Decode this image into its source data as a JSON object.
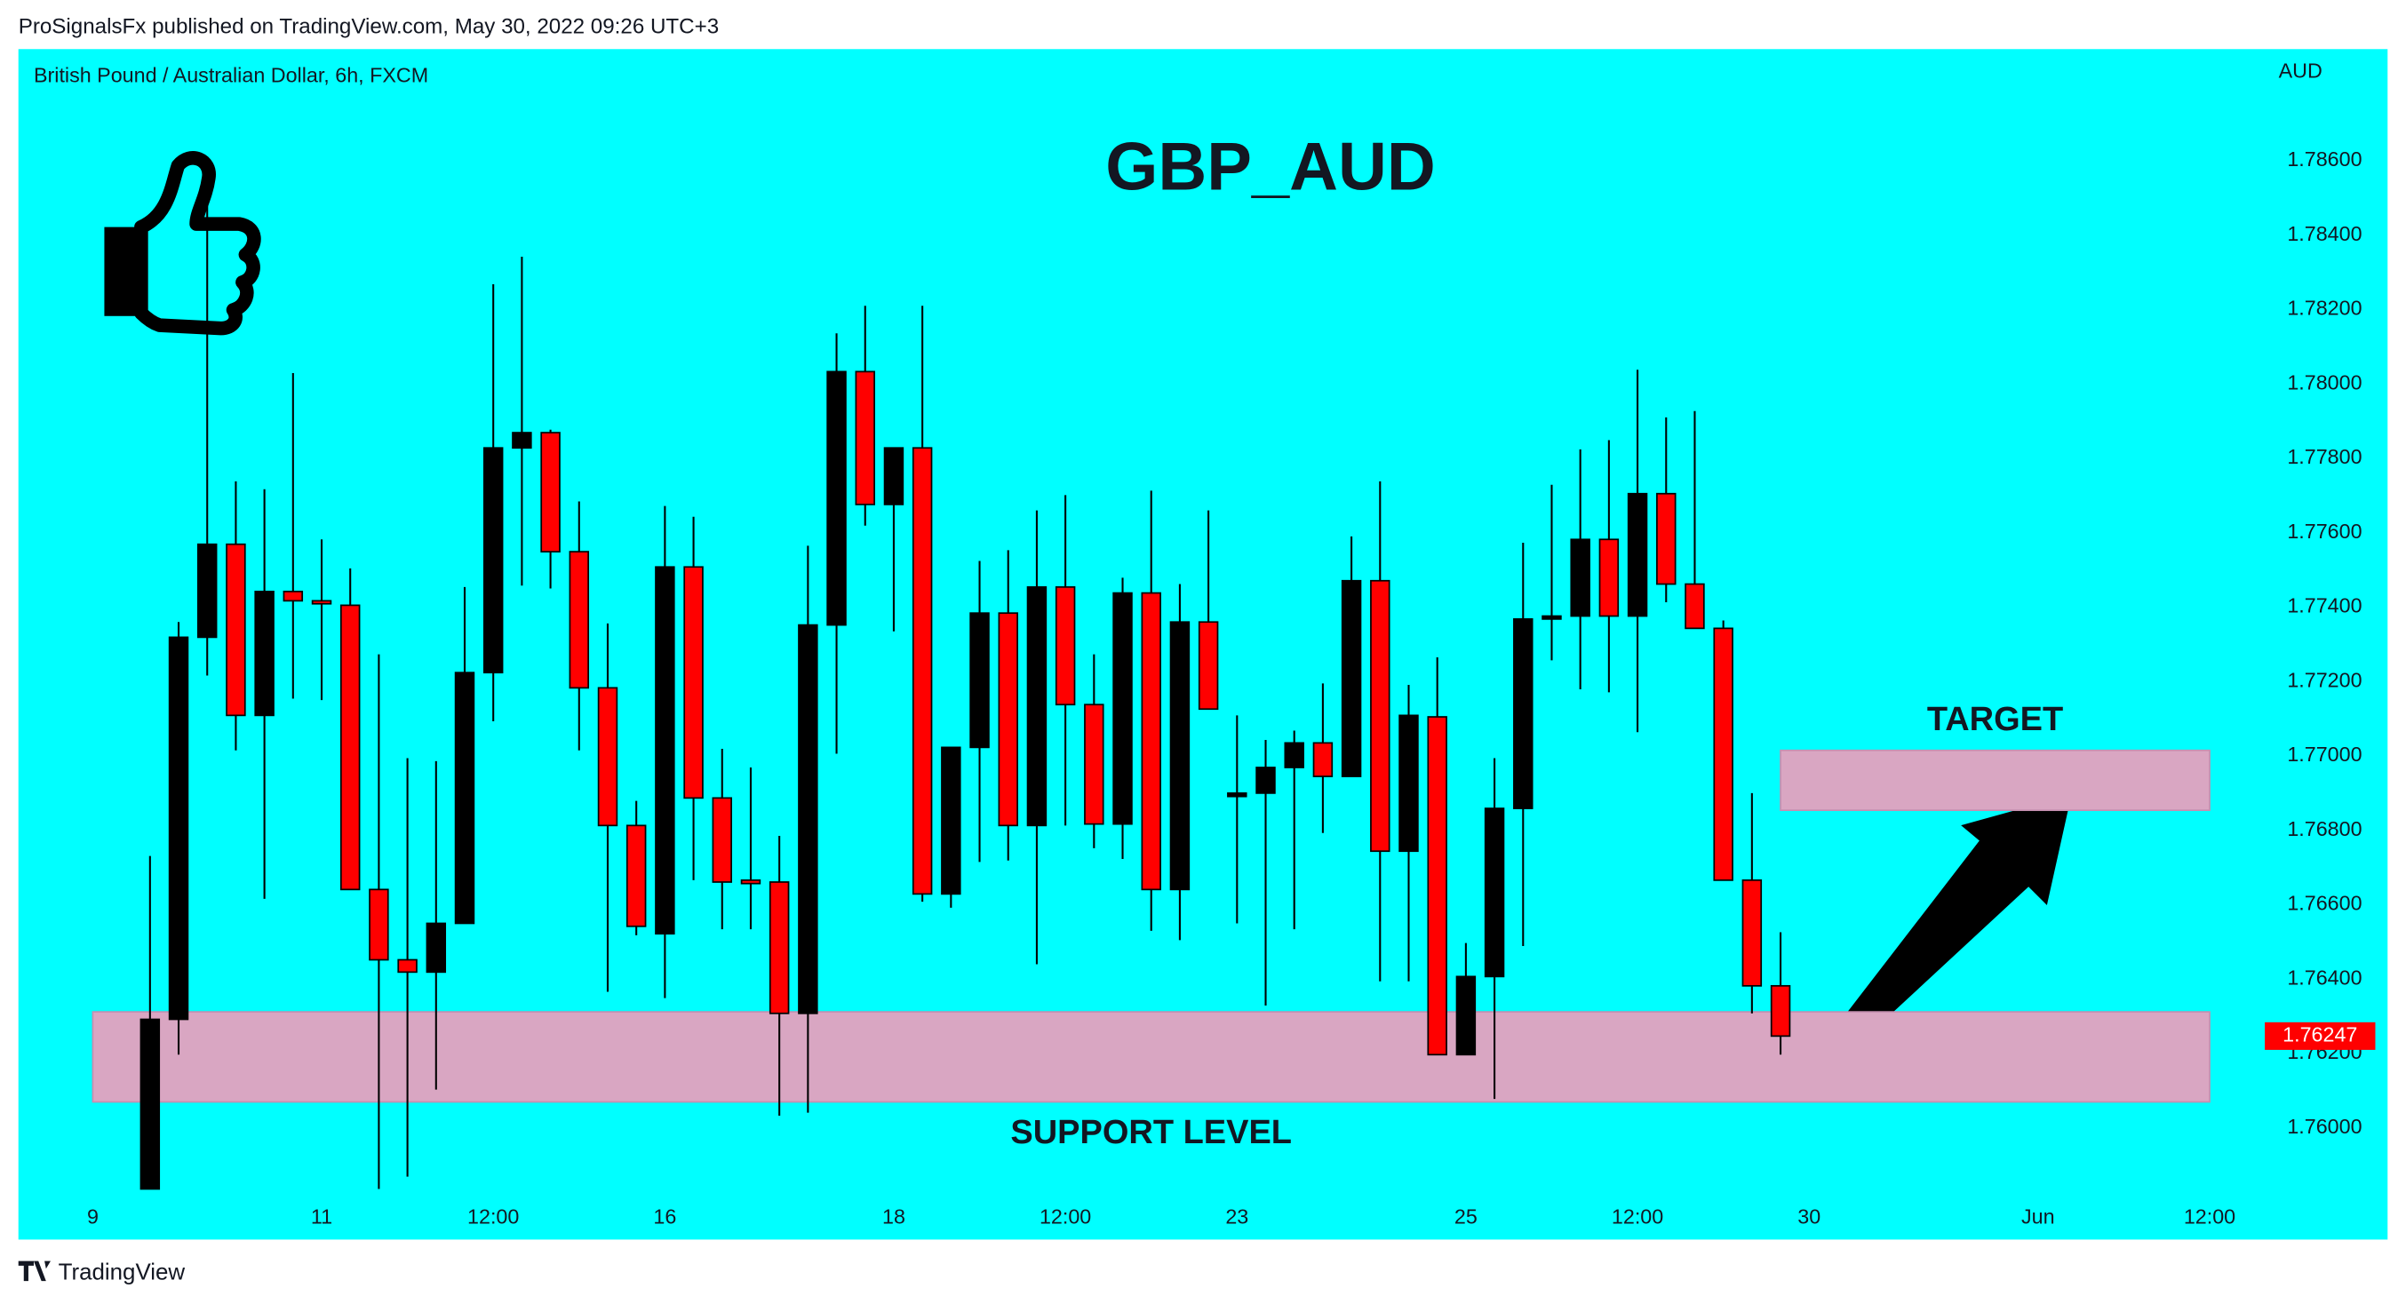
{
  "header": "ProSignalsFx published on TradingView.com, May 30, 2022 09:26 UTC+3",
  "footer": "TradingView",
  "chart_data": {
    "type": "candlestick",
    "symbol": "British Pound / Australian Dollar, 6h, FXCM",
    "title": "GBP_AUD",
    "currency": "AUD",
    "up_color": "#000000",
    "down_color": "#ff0000",
    "background": "#00ffff",
    "x": [
      2,
      3,
      4,
      5,
      6,
      7,
      8,
      9,
      10,
      11,
      12,
      13,
      14,
      15,
      16,
      17,
      18,
      19,
      20,
      21,
      22,
      23,
      24,
      25,
      26,
      27,
      28,
      29,
      30,
      31,
      32,
      33,
      34,
      35,
      36,
      37,
      38,
      39,
      40,
      41,
      42,
      43,
      44,
      45,
      46,
      47,
      48,
      49,
      50,
      51,
      52,
      53,
      54,
      55,
      56,
      57,
      58,
      59
    ],
    "open": [
      1.75836,
      1.76292,
      1.77319,
      1.77569,
      1.77109,
      1.77442,
      1.77417,
      1.77405,
      1.76641,
      1.76452,
      1.76419,
      1.7655,
      1.77224,
      1.77828,
      1.77869,
      1.77549,
      1.77183,
      1.76813,
      1.76522,
      1.77508,
      1.76887,
      1.76666,
      1.76661,
      1.76308,
      1.77352,
      1.78033,
      1.77676,
      1.77828,
      1.76629,
      1.77023,
      1.77384,
      1.76813,
      1.77454,
      1.77138,
      1.76817,
      1.77438,
      1.76641,
      1.7736,
      1.76891,
      1.769,
      1.76969,
      1.77035,
      1.76945,
      1.77471,
      1.76744,
      1.77105,
      1.76197,
      1.76407,
      1.76859,
      1.77368,
      1.77376,
      1.77582,
      1.77376,
      1.77705,
      1.77462,
      1.77343,
      1.76666,
      1.76382
    ],
    "high": [
      1.76731,
      1.7736,
      1.78539,
      1.77738,
      1.77717,
      1.78029,
      1.77582,
      1.77504,
      1.77273,
      1.76994,
      1.76986,
      1.77454,
      1.78268,
      1.78342,
      1.77877,
      1.77684,
      1.77356,
      1.76879,
      1.77672,
      1.77643,
      1.77019,
      1.76969,
      1.76785,
      1.77565,
      1.78136,
      1.7821,
      1.77828,
      1.7821,
      1.77023,
      1.77524,
      1.77553,
      1.7766,
      1.77701,
      1.77273,
      1.77479,
      1.77713,
      1.77462,
      1.7766,
      1.77109,
      1.77043,
      1.77068,
      1.77195,
      1.7759,
      1.77738,
      1.77191,
      1.77265,
      1.76497,
      1.76994,
      1.77573,
      1.77729,
      1.77824,
      1.77849,
      1.78038,
      1.7791,
      1.77927,
      1.77364,
      1.769,
      1.76526
    ],
    "low": [
      1.75836,
      1.76197,
      1.77216,
      1.77015,
      1.76616,
      1.77154,
      1.7715,
      1.76641,
      1.75836,
      1.75869,
      1.76103,
      1.7655,
      1.77093,
      1.77458,
      1.7745,
      1.77015,
      1.76366,
      1.76518,
      1.76349,
      1.76666,
      1.76534,
      1.76534,
      1.76033,
      1.76041,
      1.77006,
      1.77619,
      1.77335,
      1.76608,
      1.76592,
      1.76715,
      1.76719,
      1.7644,
      1.76813,
      1.76752,
      1.76723,
      1.7653,
      1.76505,
      1.77126,
      1.7655,
      1.76329,
      1.76534,
      1.76793,
      1.76945,
      1.76394,
      1.76394,
      1.76197,
      1.76197,
      1.76078,
      1.76489,
      1.77257,
      1.77179,
      1.77171,
      1.77064,
      1.77413,
      1.77343,
      1.76666,
      1.76308,
      1.76197
    ],
    "close": [
      1.76292,
      1.77319,
      1.77569,
      1.77109,
      1.77442,
      1.77417,
      1.77409,
      1.76641,
      1.76452,
      1.76419,
      1.7655,
      1.77224,
      1.77828,
      1.77869,
      1.77549,
      1.77183,
      1.76813,
      1.76542,
      1.77508,
      1.76887,
      1.76661,
      1.76657,
      1.76308,
      1.77352,
      1.78033,
      1.77676,
      1.77828,
      1.76629,
      1.77023,
      1.77384,
      1.76813,
      1.77454,
      1.77138,
      1.76817,
      1.77438,
      1.76641,
      1.7736,
      1.77126,
      1.769,
      1.76969,
      1.77035,
      1.76945,
      1.77471,
      1.76744,
      1.77109,
      1.76197,
      1.76407,
      1.76859,
      1.77368,
      1.77376,
      1.77582,
      1.77376,
      1.77705,
      1.77462,
      1.77343,
      1.76666,
      1.76382,
      1.76247
    ],
    "xlim": [
      -2.6,
      75.5
    ],
    "ylim": [
      1.757,
      1.789
    ],
    "xticks": [
      {
        "value": 0,
        "label": "9"
      },
      {
        "value": 8,
        "label": "11"
      },
      {
        "value": 14,
        "label": "12:00"
      },
      {
        "value": 20,
        "label": "16"
      },
      {
        "value": 28,
        "label": "18"
      },
      {
        "value": 34,
        "label": "12:00"
      },
      {
        "value": 40,
        "label": "23"
      },
      {
        "value": 48,
        "label": "25"
      },
      {
        "value": 54,
        "label": "12:00"
      },
      {
        "value": 60,
        "label": "30"
      },
      {
        "value": 68,
        "label": "Jun"
      },
      {
        "value": 74,
        "label": "12:00"
      }
    ],
    "yticks": [
      {
        "value": 1.76,
        "label": "1.76000"
      },
      {
        "value": 1.762,
        "label": "1.76200"
      },
      {
        "value": 1.764,
        "label": "1.76400"
      },
      {
        "value": 1.766,
        "label": "1.76600"
      },
      {
        "value": 1.768,
        "label": "1.76800"
      },
      {
        "value": 1.77,
        "label": "1.77000"
      },
      {
        "value": 1.772,
        "label": "1.77200"
      },
      {
        "value": 1.774,
        "label": "1.77400"
      },
      {
        "value": 1.776,
        "label": "1.77600"
      },
      {
        "value": 1.778,
        "label": "1.77800"
      },
      {
        "value": 1.78,
        "label": "1.78000"
      },
      {
        "value": 1.782,
        "label": "1.78200"
      },
      {
        "value": 1.784,
        "label": "1.78400"
      },
      {
        "value": 1.786,
        "label": "1.78600"
      }
    ],
    "zones": [
      {
        "label": "SUPPORT LEVEL",
        "label_position": "below",
        "xlim": [
          0,
          74
        ],
        "ylim": [
          1.7607,
          1.76312
        ],
        "color": "#d9a6c2"
      },
      {
        "label": "TARGET",
        "label_position": "above",
        "xlim": [
          59,
          74
        ],
        "ylim": [
          1.76854,
          1.77015
        ],
        "color": "#d9a6c2"
      }
    ]
  }
}
